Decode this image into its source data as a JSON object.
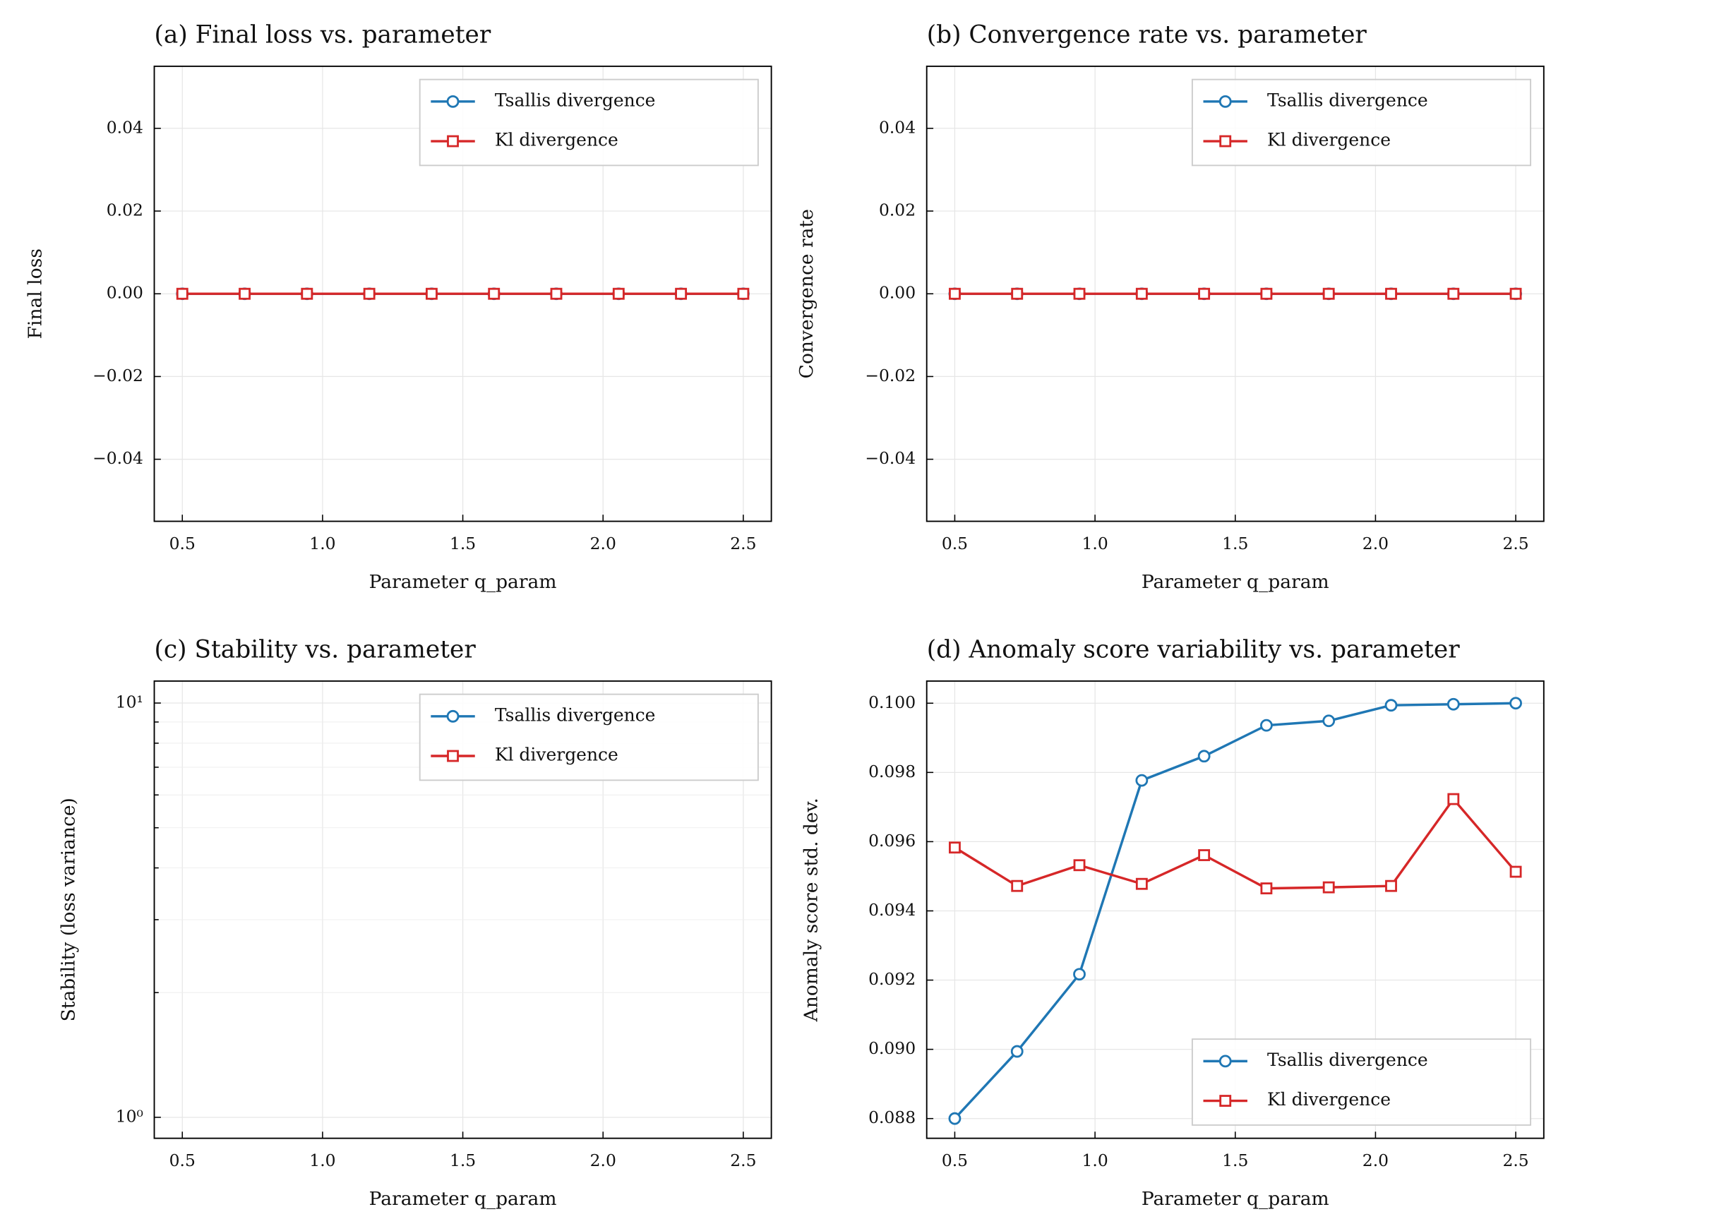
{
  "chart_data": [
    {
      "type": "line",
      "title": "(a) Final loss vs. parameter",
      "xlabel": "Parameter q_param",
      "ylabel": "Final loss",
      "x": [
        0.5,
        0.7222,
        0.9444,
        1.1667,
        1.3889,
        1.6111,
        1.8333,
        2.0556,
        2.2778,
        2.5
      ],
      "series": [
        {
          "name": "Tsallis divergence",
          "color": "#1f77b4",
          "marker": "circle",
          "values": [
            0,
            0,
            0,
            0,
            0,
            0,
            0,
            0,
            0,
            0
          ]
        },
        {
          "name": "Kl divergence",
          "color": "#d62728",
          "marker": "square",
          "values": [
            0,
            0,
            0,
            0,
            0,
            0,
            0,
            0,
            0,
            0
          ]
        }
      ],
      "xlim": [
        0.4,
        2.6
      ],
      "xticks": [
        0.5,
        {
          "value": 1.0,
          "label": "1.0"
        },
        1.5,
        {
          "value": 2.0,
          "label": "2.0"
        },
        2.5
      ],
      "ylim": [
        -0.055,
        0.055
      ],
      "yticks": [
        {
          "value": -0.04,
          "label": "−0.04"
        },
        {
          "value": -0.02,
          "label": "−0.02"
        },
        {
          "value": 0,
          "label": "0.00"
        },
        0.02,
        0.04
      ],
      "grid": true,
      "legend": "upper right"
    },
    {
      "type": "line",
      "title": "(b) Convergence rate vs. parameter",
      "xlabel": "Parameter q_param",
      "ylabel": "Convergence rate",
      "x": [
        0.5,
        0.7222,
        0.9444,
        1.1667,
        1.3889,
        1.6111,
        1.8333,
        2.0556,
        2.2778,
        2.5
      ],
      "series": [
        {
          "name": "Tsallis divergence",
          "color": "#1f77b4",
          "marker": "circle",
          "values": [
            0,
            0,
            0,
            0,
            0,
            0,
            0,
            0,
            0,
            0
          ]
        },
        {
          "name": "Kl divergence",
          "color": "#d62728",
          "marker": "square",
          "values": [
            0,
            0,
            0,
            0,
            0,
            0,
            0,
            0,
            0,
            0
          ]
        }
      ],
      "xlim": [
        0.4,
        2.6
      ],
      "xticks": [
        0.5,
        {
          "value": 1.0,
          "label": "1.0"
        },
        1.5,
        {
          "value": 2.0,
          "label": "2.0"
        },
        2.5
      ],
      "ylim": [
        -0.055,
        0.055
      ],
      "yticks": [
        {
          "value": -0.04,
          "label": "−0.04"
        },
        {
          "value": -0.02,
          "label": "−0.02"
        },
        {
          "value": 0,
          "label": "0.00"
        },
        0.02,
        0.04
      ],
      "grid": true,
      "legend": "upper right"
    },
    {
      "type": "line",
      "title": "(c) Stability vs. parameter",
      "xlabel": "Parameter q_param",
      "ylabel": "Stability (loss variance)",
      "x": [
        0.5,
        0.7222,
        0.9444,
        1.1667,
        1.3889,
        1.6111,
        1.8333,
        2.0556,
        2.2778,
        2.5
      ],
      "series": [
        {
          "name": "Tsallis divergence",
          "color": "#1f77b4",
          "marker": "circle",
          "values": [
            null,
            null,
            null,
            null,
            null,
            null,
            null,
            null,
            null,
            null
          ]
        },
        {
          "name": "Kl divergence",
          "color": "#d62728",
          "marker": "square",
          "values": [
            null,
            null,
            null,
            null,
            null,
            null,
            null,
            null,
            null,
            null
          ]
        }
      ],
      "xlim": [
        0.4,
        2.6
      ],
      "xticks": [
        0.5,
        {
          "value": 1.0,
          "label": "1.0"
        },
        1.5,
        {
          "value": 2.0,
          "label": "2.0"
        },
        2.5
      ],
      "ylim": [
        0.89,
        11.3
      ],
      "ylog": true,
      "yticks": [
        {
          "value": 1,
          "label": "10⁰"
        },
        {
          "value": 10,
          "label": "10¹"
        }
      ],
      "yminorticks": [
        2,
        3,
        4,
        5,
        6,
        7,
        8,
        9
      ],
      "grid": true,
      "legend": "upper right"
    },
    {
      "type": "line",
      "title": "(d) Anomaly score variability vs. parameter",
      "xlabel": "Parameter q_param",
      "ylabel": "Anomaly score std. dev.",
      "x": [
        0.5,
        0.7222,
        0.9444,
        1.1667,
        1.3889,
        1.6111,
        1.8333,
        2.0556,
        2.2778,
        2.5
      ],
      "series": [
        {
          "name": "Tsallis divergence",
          "color": "#1f77b4",
          "marker": "circle",
          "values": [
            0.088,
            0.08994,
            0.09217,
            0.09777,
            0.09847,
            0.09936,
            0.09949,
            0.09994,
            0.09997,
            0.1
          ]
        },
        {
          "name": "Kl divergence",
          "color": "#d62728",
          "marker": "square",
          "values": [
            0.09583,
            0.09472,
            0.09532,
            0.09478,
            0.09561,
            0.09465,
            0.09468,
            0.09472,
            0.09723,
            0.09513
          ]
        }
      ],
      "xlim": [
        0.4,
        2.6
      ],
      "xticks": [
        0.5,
        {
          "value": 1.0,
          "label": "1.0"
        },
        1.5,
        {
          "value": 2.0,
          "label": "2.0"
        },
        2.5
      ],
      "ylim": [
        0.08743,
        0.10064
      ],
      "yticks": [
        0.088,
        {
          "value": 0.09,
          "label": "0.090"
        },
        0.092,
        0.094,
        0.096,
        0.098,
        {
          "value": 0.1,
          "label": "0.100"
        }
      ],
      "grid": true,
      "legend": "lower right"
    }
  ]
}
